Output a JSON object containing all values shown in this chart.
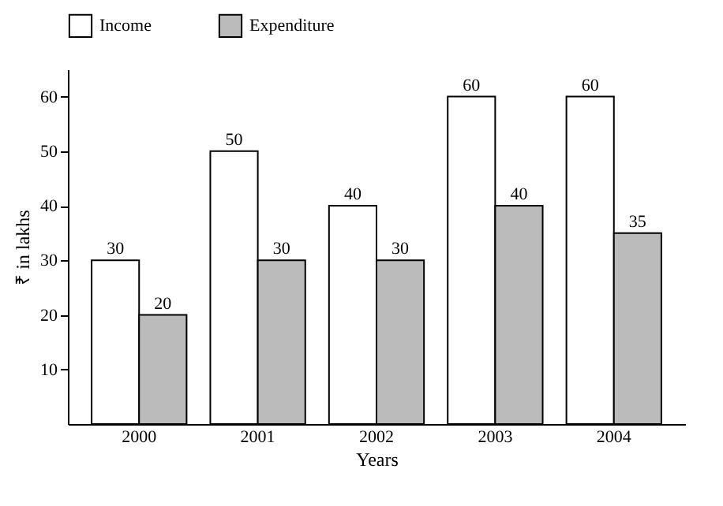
{
  "chart_data": {
    "type": "bar",
    "xlabel": "Years",
    "ylabel": "₹ in lakhs",
    "categories": [
      "2000",
      "2001",
      "2002",
      "2003",
      "2004"
    ],
    "series": [
      {
        "name": "Income",
        "color": "#ffffff",
        "values": [
          30,
          50,
          40,
          60,
          60
        ]
      },
      {
        "name": "Expenditure",
        "color": "#bbbbbb",
        "values": [
          20,
          30,
          30,
          40,
          35
        ]
      }
    ],
    "ylim": [
      0,
      65
    ],
    "yticks": [
      10,
      20,
      30,
      40,
      50,
      60
    ],
    "grid": false,
    "legend": "top",
    "data_labels": true
  }
}
